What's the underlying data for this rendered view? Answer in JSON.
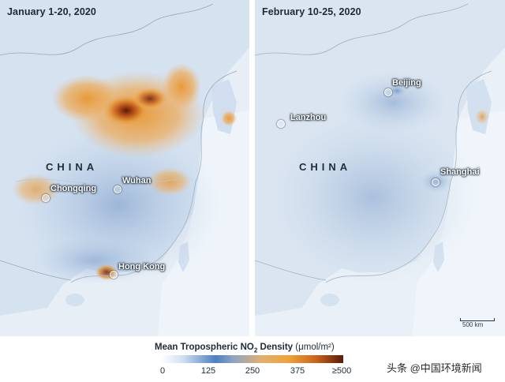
{
  "left_panel": {
    "title": "January 1-20, 2020",
    "country_label": "CHINA",
    "cities": [
      "Chongqing",
      "Wuhan",
      "Hong Kong"
    ]
  },
  "right_panel": {
    "title": "February 10-25, 2020",
    "country_label": "CHINA",
    "cities": [
      "Beijing",
      "Lanzhou",
      "Shanghai"
    ],
    "scale_bar": "500 km"
  },
  "legend": {
    "title": "Mean Tropospheric NO",
    "subscript": "2",
    "title_suffix": " Density",
    "unit": "(μmol/m²)",
    "ticks": [
      "0",
      "125",
      "250",
      "375",
      "≥500"
    ],
    "colors": {
      "low": "#ffffff",
      "mid_blue": "#4d7fc0",
      "orange": "#f0a23a",
      "high": "#5b1a0a"
    }
  },
  "watermark": "头条 @中国环境新闻"
}
